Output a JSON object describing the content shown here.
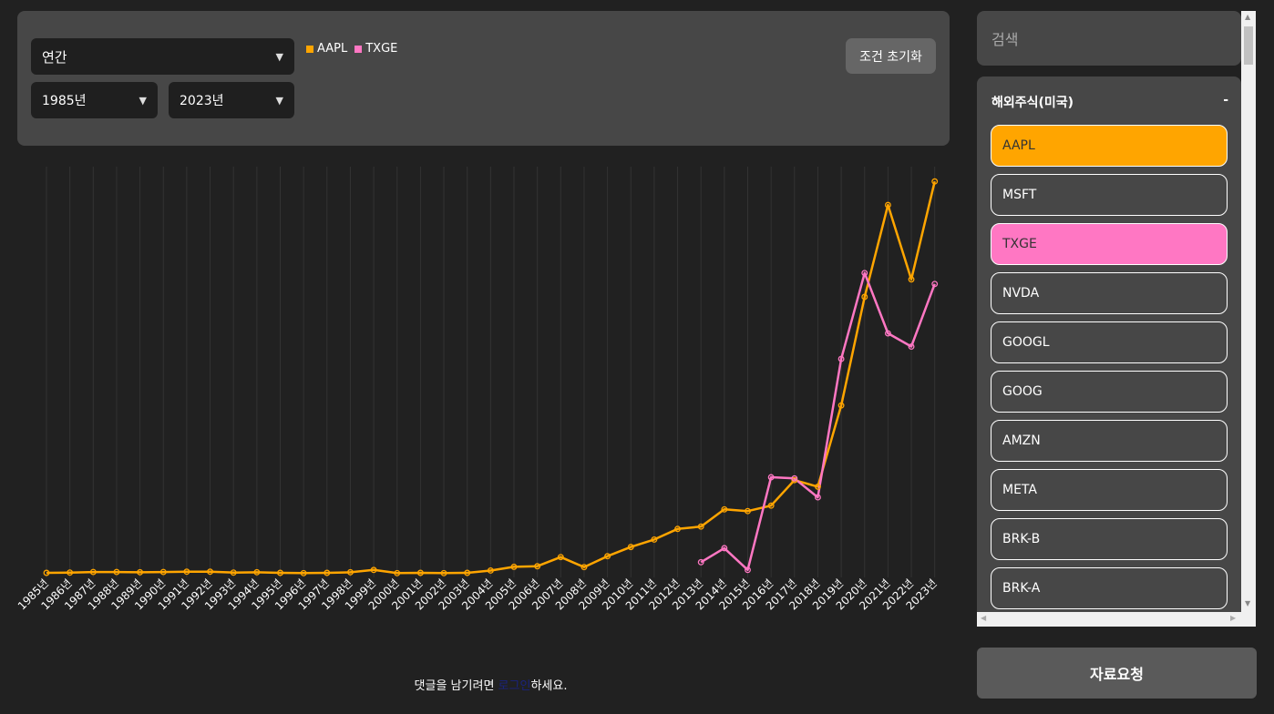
{
  "controls": {
    "period": "연간",
    "start_year": "1985년",
    "end_year": "2023년",
    "reset_label": "조건 초기화"
  },
  "legend": [
    {
      "label": "AAPL",
      "color": "#FFA500"
    },
    {
      "label": "TXGE",
      "color": "#FF77C3"
    }
  ],
  "footer": {
    "prefix": "댓글을 남기려면 ",
    "link": "로그인",
    "suffix": "하세요."
  },
  "sidebar": {
    "search_placeholder": "검색",
    "group_title": "해외주식(미국)",
    "group_toggle": "-",
    "stocks": [
      {
        "label": "AAPL",
        "selected": true,
        "color": "#FFA500"
      },
      {
        "label": "MSFT",
        "selected": false
      },
      {
        "label": "TXGE",
        "selected": true,
        "color": "#FF77C3"
      },
      {
        "label": "NVDA",
        "selected": false
      },
      {
        "label": "GOOGL",
        "selected": false
      },
      {
        "label": "GOOG",
        "selected": false
      },
      {
        "label": "AMZN",
        "selected": false
      },
      {
        "label": "META",
        "selected": false
      },
      {
        "label": "BRK-B",
        "selected": false
      },
      {
        "label": "BRK-A",
        "selected": false
      }
    ],
    "request_label": "자료요청"
  },
  "chart_data": {
    "type": "line",
    "categories": [
      "1985년",
      "1986년",
      "1987년",
      "1988년",
      "1989년",
      "1990년",
      "1991년",
      "1992년",
      "1993년",
      "1994년",
      "1995년",
      "1996년",
      "1997년",
      "1998년",
      "1999년",
      "2000년",
      "2001년",
      "2002년",
      "2003년",
      "2004년",
      "2005년",
      "2006년",
      "2007년",
      "2008년",
      "2009년",
      "2010년",
      "2011년",
      "2012년",
      "2013년",
      "2014년",
      "2015년",
      "2016년",
      "2017년",
      "2018년",
      "2019년",
      "2020년",
      "2021년",
      "2022년",
      "2023년"
    ],
    "grid": true,
    "legend_position": "top",
    "series": [
      {
        "name": "AAPL",
        "color": "#FFA500",
        "values": [
          0,
          0.1,
          0.3,
          0.3,
          0.2,
          0.3,
          0.4,
          0.4,
          0.1,
          0.2,
          0,
          -0.1,
          0,
          0.2,
          1,
          -0.1,
          0,
          -0.1,
          0,
          0.8,
          2.1,
          2.3,
          5.5,
          2,
          5.8,
          9,
          11.6,
          15.3,
          16.1,
          22.1,
          21.5,
          23.4,
          32.3,
          30,
          58.3,
          96.1,
          128.1,
          102.2,
          136.3
        ]
      },
      {
        "name": "TXGE",
        "color": "#FF77C3",
        "values": [
          null,
          null,
          null,
          null,
          null,
          null,
          null,
          null,
          null,
          null,
          null,
          null,
          null,
          null,
          null,
          null,
          null,
          null,
          null,
          null,
          null,
          null,
          null,
          null,
          null,
          null,
          null,
          null,
          3.7,
          8.6,
          1,
          33.3,
          32.9,
          26.3,
          74.5,
          104.4,
          83.4,
          78.8,
          100.6
        ]
      }
    ]
  }
}
